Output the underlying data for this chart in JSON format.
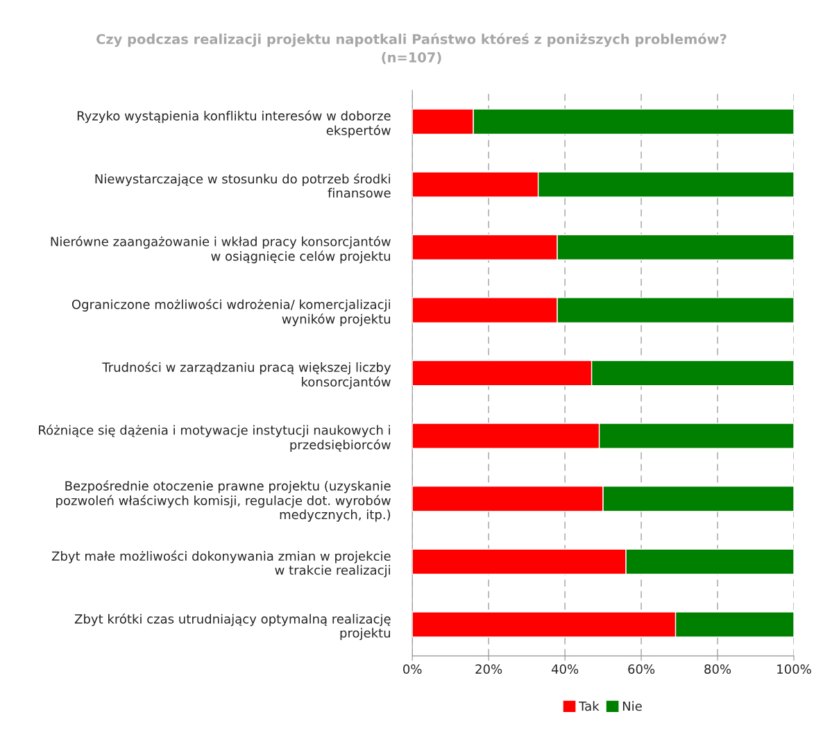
{
  "chart_data": {
    "type": "bar",
    "orientation": "horizontal",
    "stacked": true,
    "title": "Czy podczas realizacji projektu napotkali Państwo któreś z poniższych problemów?\n(n=107)",
    "categories": [
      "Ryzyko wystąpienia konfliktu interesów w doborze\nekspertów",
      "Niewystarczające w stosunku do potrzeb środki\nfinansowe",
      "Nierówne zaangażowanie i wkład pracy konsorcjantów\nw osiągnięcie celów projektu",
      "Ograniczone możliwości wdrożenia/ komercjalizacji\nwyników projektu",
      "Trudności w zarządzaniu pracą większej liczby\nkonsorcjantów",
      "Różniące się dążenia i motywacje instytucji naukowych i\nprzedsiębiorców",
      "Bezpośrednie otoczenie prawne projektu (uzyskanie\npozwoleń właściwych komisji, regulacje dot. wyrobów\nmedycznych, itp.)",
      "Zbyt małe możliwości dokonywania zmian w projekcie\nw trakcie realizacji",
      "Zbyt krótki czas utrudniający optymalną realizację\nprojektu"
    ],
    "series": [
      {
        "name": "Tak",
        "color": "#ff0000",
        "values": [
          16,
          33,
          38,
          38,
          47,
          49,
          50,
          56,
          69
        ]
      },
      {
        "name": "Nie",
        "color": "#008000",
        "values": [
          84,
          67,
          62,
          62,
          53,
          51,
          50,
          44,
          31
        ]
      }
    ],
    "xlim": [
      0,
      100
    ],
    "xticks": [
      {
        "value": 0,
        "label": "0%"
      },
      {
        "value": 20,
        "label": "20%"
      },
      {
        "value": 40,
        "label": "40%"
      },
      {
        "value": 60,
        "label": "60%"
      },
      {
        "value": 80,
        "label": "80%"
      },
      {
        "value": 100,
        "label": "100%"
      }
    ],
    "grid": "x",
    "legend": "bottom"
  }
}
